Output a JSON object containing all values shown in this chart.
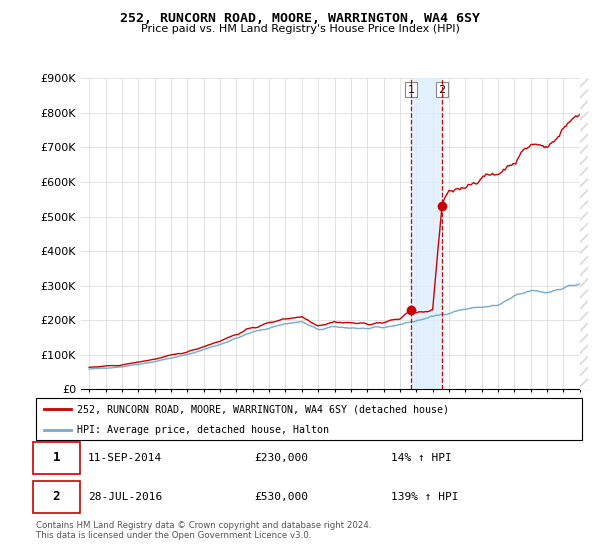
{
  "title": "252, RUNCORN ROAD, MOORE, WARRINGTON, WA4 6SY",
  "subtitle": "Price paid vs. HM Land Registry's House Price Index (HPI)",
  "ylim": [
    0,
    900000
  ],
  "yticks": [
    0,
    100000,
    200000,
    300000,
    400000,
    500000,
    600000,
    700000,
    800000,
    900000
  ],
  "transaction1_date": 2014.69,
  "transaction1_price": 230000,
  "transaction2_date": 2016.57,
  "transaction2_price": 530000,
  "legend1_label": "252, RUNCORN ROAD, MOORE, WARRINGTON, WA4 6SY (detached house)",
  "legend2_label": "HPI: Average price, detached house, Halton",
  "annot1_date": "11-SEP-2014",
  "annot1_price": "£230,000",
  "annot1_hpi": "14% ↑ HPI",
  "annot2_date": "28-JUL-2016",
  "annot2_price": "£530,000",
  "annot2_hpi": "139% ↑ HPI",
  "footer": "Contains HM Land Registry data © Crown copyright and database right 2024.\nThis data is licensed under the Open Government Licence v3.0.",
  "line1_color": "#cc0000",
  "line2_color": "#77aacc",
  "shade_color": "#ddeeff"
}
